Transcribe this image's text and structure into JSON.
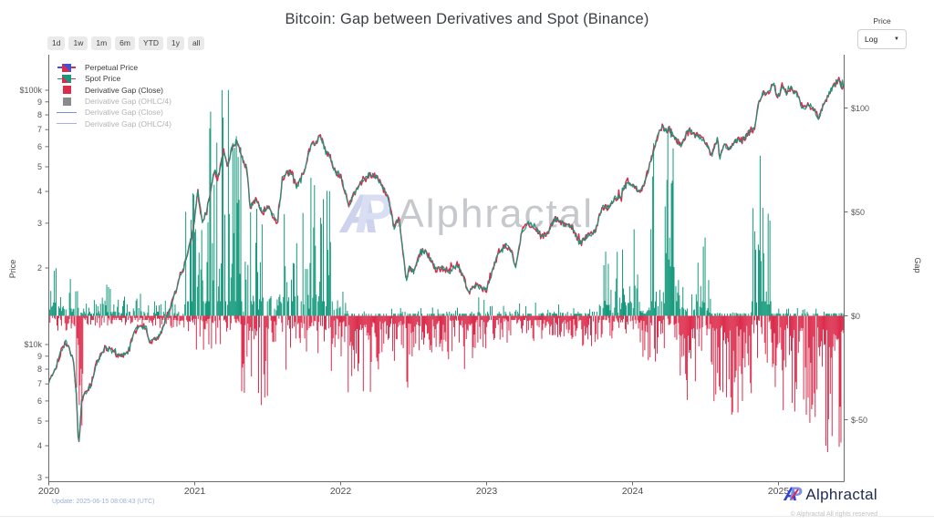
{
  "title": "Bitcoin: Gap between Derivatives and Spot (Binance)",
  "toolbar": {
    "ranges": [
      "1d",
      "1w",
      "1m",
      "6m",
      "YTD",
      "1y",
      "all"
    ]
  },
  "controls": {
    "scale_label": "Price",
    "scale_value": "Log",
    "caret": "▼"
  },
  "watermark": {
    "mark_a": "A",
    "mark_p": "P",
    "text": "Alphractal"
  },
  "footer": {
    "update_note": "Update: 2025-06-15 08:08:43 (UTC)",
    "brand_a": "A",
    "brand_p": "P",
    "brand": "Alphractal",
    "copyright": "© Alphractal All rights reserved"
  },
  "theme": {
    "teal": "#14997c",
    "red": "#dc2c4c",
    "blue": "#3d52d8",
    "gray": "#8a8a8a",
    "legend_line_blue": "#7b8fd4",
    "legend_line_purple": "#a3b1e6",
    "axis": "#6b6b6b"
  },
  "chart_data": {
    "type": "mixed-line-bar",
    "title": "Bitcoin: Gap between Derivatives and Spot (Binance)",
    "legend": [
      {
        "label": "Perpetual Price",
        "marker": "candle-blue",
        "enabled": true
      },
      {
        "label": "Spot Price",
        "marker": "candle-teal",
        "enabled": true
      },
      {
        "label": "Derivative Gap (Close)",
        "marker": "square-red",
        "enabled": true
      },
      {
        "label": "Derivative Gap (OHLC/4)",
        "marker": "square-gray",
        "enabled": false
      },
      {
        "label": "Derivative Gap (Close)",
        "marker": "line-blue",
        "enabled": false
      },
      {
        "label": "Derivative Gap (OHLC/4)",
        "marker": "line-purple",
        "enabled": false
      }
    ],
    "x_axis": {
      "start_date": "2020-01",
      "end_date": "2025-06",
      "tick_labels": [
        "2020",
        "2021",
        "2022",
        "2023",
        "2024",
        "2025"
      ],
      "tick_months": [
        0,
        12,
        24,
        36,
        48,
        60
      ]
    },
    "price_axis": {
      "label": "Price",
      "scale": "log",
      "units": "USD",
      "ticks": [
        {
          "v": 100,
          "label": "$100k"
        },
        {
          "v": 90,
          "label": "9"
        },
        {
          "v": 80,
          "label": "8"
        },
        {
          "v": 70,
          "label": "7"
        },
        {
          "v": 60,
          "label": "6"
        },
        {
          "v": 50,
          "label": "5"
        },
        {
          "v": 40,
          "label": "4"
        },
        {
          "v": 30,
          "label": "3"
        },
        {
          "v": 20,
          "label": "2"
        },
        {
          "v": 10,
          "label": "$10k"
        },
        {
          "v": 9,
          "label": "9"
        },
        {
          "v": 8,
          "label": "8"
        },
        {
          "v": 7,
          "label": "7"
        },
        {
          "v": 6,
          "label": "6"
        },
        {
          "v": 5,
          "label": "5"
        },
        {
          "v": 4,
          "label": "4"
        },
        {
          "v": 3,
          "label": "3"
        }
      ]
    },
    "gap_axis": {
      "label": "Gap",
      "units": "USD",
      "zero_line": 0,
      "ticks": [
        {
          "v": 100,
          "label": "$100"
        },
        {
          "v": 50,
          "label": "$50"
        },
        {
          "v": 0,
          "label": "$0"
        },
        {
          "v": -50,
          "label": "$-50"
        }
      ]
    },
    "price_anchor_format": "[month_since_2020_01, price_thousand_usd]",
    "price_anchors": [
      [
        0,
        7.2
      ],
      [
        0.5,
        8
      ],
      [
        1,
        9.4
      ],
      [
        1.4,
        10.3
      ],
      [
        2,
        8.8
      ],
      [
        2.3,
        6
      ],
      [
        2.45,
        3.9
      ],
      [
        2.7,
        6
      ],
      [
        3,
        6.4
      ],
      [
        3.5,
        7
      ],
      [
        4,
        8.7
      ],
      [
        4.6,
        9.7
      ],
      [
        5,
        9.5
      ],
      [
        5.8,
        9.1
      ],
      [
        6.5,
        9.2
      ],
      [
        7,
        11.1
      ],
      [
        7.4,
        11.8
      ],
      [
        8,
        11.7
      ],
      [
        8.3,
        10.2
      ],
      [
        9,
        10.7
      ],
      [
        9.8,
        13.1
      ],
      [
        10,
        13.8
      ],
      [
        10.8,
        18.7
      ],
      [
        11,
        19.4
      ],
      [
        11.5,
        23.8
      ],
      [
        11.9,
        29
      ],
      [
        12.25,
        40
      ],
      [
        12.6,
        30.5
      ],
      [
        13,
        33.5
      ],
      [
        13.6,
        49
      ],
      [
        13.9,
        45
      ],
      [
        14.4,
        58.3
      ],
      [
        14.7,
        50
      ],
      [
        15,
        58.8
      ],
      [
        15.45,
        63.5
      ],
      [
        15.9,
        54
      ],
      [
        16.3,
        49
      ],
      [
        16.55,
        34.8
      ],
      [
        17,
        37.3
      ],
      [
        17.6,
        33
      ],
      [
        18,
        35
      ],
      [
        18.8,
        30
      ],
      [
        19.2,
        44.5
      ],
      [
        19.6,
        47.5
      ],
      [
        20,
        47.1
      ],
      [
        20.4,
        41.5
      ],
      [
        21,
        48.2
      ],
      [
        21.6,
        62
      ],
      [
        22,
        61.3
      ],
      [
        22.3,
        67.5
      ],
      [
        22.8,
        56.3
      ],
      [
        23,
        57
      ],
      [
        23.6,
        46.7
      ],
      [
        24,
        46.2
      ],
      [
        24.7,
        35.1
      ],
      [
        25,
        38.5
      ],
      [
        25.9,
        44.5
      ],
      [
        26.4,
        46.8
      ],
      [
        27,
        45.5
      ],
      [
        27.9,
        37.7
      ],
      [
        28.4,
        28.8
      ],
      [
        28.8,
        31.7
      ],
      [
        29.4,
        17.8
      ],
      [
        29.6,
        20
      ],
      [
        30,
        19.3
      ],
      [
        30.6,
        23.3
      ],
      [
        31,
        23.3
      ],
      [
        31.8,
        19.9
      ],
      [
        32.4,
        19.9
      ],
      [
        33,
        19.4
      ],
      [
        33.6,
        20.7
      ],
      [
        34.2,
        17.9
      ],
      [
        34.5,
        15.8
      ],
      [
        35,
        17.2
      ],
      [
        35.6,
        16.6
      ],
      [
        36,
        16.5
      ],
      [
        36.7,
        21.1
      ],
      [
        37,
        23.1
      ],
      [
        37.6,
        24.6
      ],
      [
        38,
        23.5
      ],
      [
        38.4,
        20.2
      ],
      [
        38.9,
        28
      ],
      [
        39.4,
        29.9
      ],
      [
        40,
        29.2
      ],
      [
        40.5,
        26.4
      ],
      [
        41,
        27.2
      ],
      [
        41.6,
        31.2
      ],
      [
        42,
        30.5
      ],
      [
        42.6,
        29.2
      ],
      [
        43,
        29.2
      ],
      [
        43.6,
        25.1
      ],
      [
        44,
        26
      ],
      [
        44.9,
        27.8
      ],
      [
        45.5,
        34.5
      ],
      [
        46,
        34.6
      ],
      [
        46.6,
        37.8
      ],
      [
        47,
        37.7
      ],
      [
        47.5,
        44.2
      ],
      [
        48,
        42.3
      ],
      [
        48.6,
        39.8
      ],
      [
        49,
        43.1
      ],
      [
        49.9,
        62.5
      ],
      [
        50.45,
        73.1
      ],
      [
        50.8,
        68
      ],
      [
        51,
        71.3
      ],
      [
        51.6,
        63.5
      ],
      [
        52,
        60.6
      ],
      [
        52.6,
        70
      ],
      [
        53,
        67.5
      ],
      [
        53.6,
        65
      ],
      [
        54,
        62.7
      ],
      [
        54.5,
        55.5
      ],
      [
        55,
        64.6
      ],
      [
        55.17,
        53.9
      ],
      [
        55.5,
        61
      ],
      [
        56,
        59.1
      ],
      [
        56.6,
        64
      ],
      [
        57,
        63.3
      ],
      [
        57.6,
        68.5
      ],
      [
        58,
        70.2
      ],
      [
        58.4,
        89.5
      ],
      [
        58.75,
        99
      ],
      [
        59,
        96.4
      ],
      [
        59.35,
        101.5
      ],
      [
        59.6,
        106.5
      ],
      [
        59.95,
        92.8
      ],
      [
        60.3,
        104.5
      ],
      [
        60.7,
        97.5
      ],
      [
        61,
        102.4
      ],
      [
        61.6,
        95
      ],
      [
        62,
        84.3
      ],
      [
        62.5,
        87.5
      ],
      [
        63,
        82.5
      ],
      [
        63.25,
        76.5
      ],
      [
        63.7,
        87
      ],
      [
        64,
        94.2
      ],
      [
        64.5,
        103.5
      ],
      [
        64.95,
        110.8
      ],
      [
        65.2,
        103
      ],
      [
        65.4,
        105.5
      ]
    ],
    "gap_regime_format": "[month_start, month_end, prob_positive, max_pos_usd, max_neg_usd]",
    "gap_regimes": [
      [
        0,
        2.2,
        0.55,
        26,
        8
      ],
      [
        2.2,
        2.8,
        0.3,
        12,
        66
      ],
      [
        2.8,
        4.5,
        0.5,
        9,
        6
      ],
      [
        4.5,
        5.1,
        0.6,
        32,
        5
      ],
      [
        5.1,
        8.5,
        0.5,
        11,
        5
      ],
      [
        8.5,
        11.2,
        0.45,
        8,
        6
      ],
      [
        11.2,
        13.2,
        0.7,
        78,
        18
      ],
      [
        13.2,
        15.8,
        0.72,
        116,
        22
      ],
      [
        15.8,
        18,
        0.42,
        52,
        44
      ],
      [
        18,
        19.3,
        0.45,
        20,
        18
      ],
      [
        19.3,
        21.2,
        0.6,
        52,
        26
      ],
      [
        21.2,
        23.4,
        0.62,
        68,
        28
      ],
      [
        23.4,
        24.6,
        0.4,
        16,
        24
      ],
      [
        24.6,
        26.6,
        0.14,
        6,
        42
      ],
      [
        26.6,
        29,
        0.1,
        4,
        26
      ],
      [
        29,
        30.1,
        0.1,
        4,
        36
      ],
      [
        30.1,
        34,
        0.12,
        4,
        21
      ],
      [
        34,
        35.2,
        0.1,
        4,
        30
      ],
      [
        35.2,
        36.6,
        0.22,
        9,
        16
      ],
      [
        36.6,
        40,
        0.15,
        6,
        13
      ],
      [
        40,
        43,
        0.22,
        9,
        12
      ],
      [
        43,
        45.2,
        0.18,
        7,
        15
      ],
      [
        45.2,
        47,
        0.55,
        33,
        12
      ],
      [
        47,
        48.6,
        0.5,
        52,
        16
      ],
      [
        48.6,
        49.5,
        0.3,
        18,
        22
      ],
      [
        49.5,
        51.8,
        0.62,
        92,
        24
      ],
      [
        51.8,
        53.2,
        0.28,
        26,
        58
      ],
      [
        53.2,
        54.3,
        0.58,
        52,
        18
      ],
      [
        54.3,
        57.8,
        0.13,
        9,
        48
      ],
      [
        57.8,
        59.4,
        0.58,
        92,
        24
      ],
      [
        59.4,
        61,
        0.1,
        7,
        50
      ],
      [
        61,
        63.5,
        0.08,
        5,
        56
      ],
      [
        63.5,
        65.4,
        0.1,
        7,
        66
      ]
    ]
  }
}
